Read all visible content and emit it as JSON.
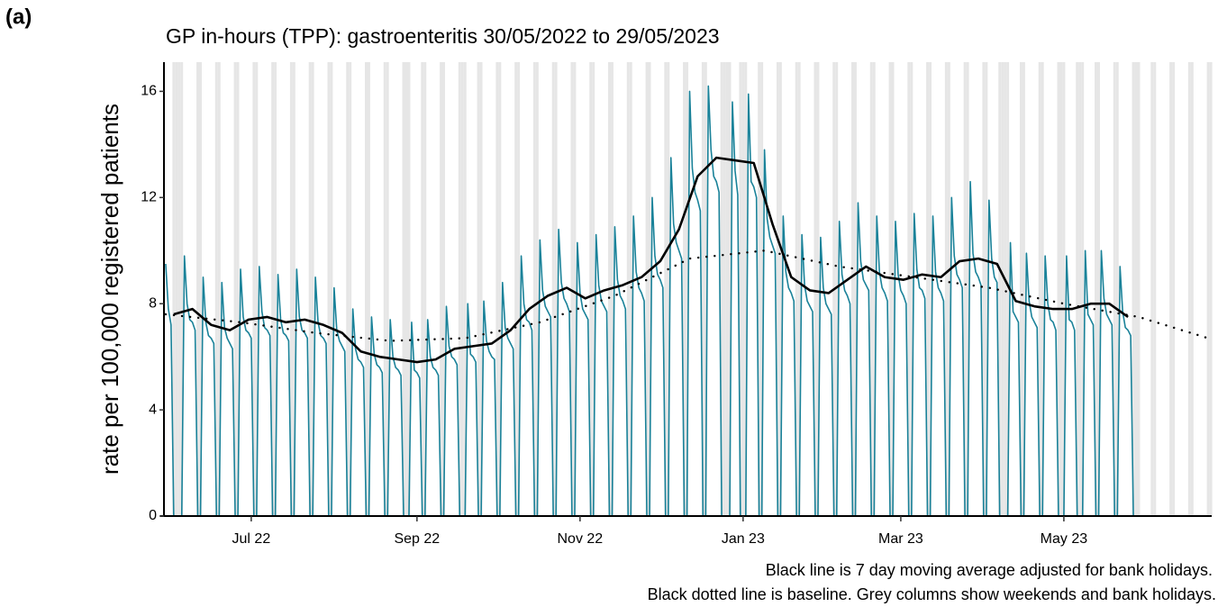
{
  "chart_data": {
    "type": "line",
    "panel_label": "(a)",
    "title": "GP in-hours (TPP): gastroenteritis 30/05/2022 to 29/05/2023",
    "ylabel": "rate per 100,000 registered patients",
    "notes": [
      "Black line is 7 day moving average adjusted for bank holidays.",
      "Black dotted line is baseline. Grey columns show weekends and bank holidays."
    ],
    "xlim": [
      -2,
      391.3
    ],
    "xticks": [
      {
        "value": 32,
        "label": "Jul 22"
      },
      {
        "value": 94,
        "label": "Sep 22"
      },
      {
        "value": 155,
        "label": "Nov 22"
      },
      {
        "value": 216,
        "label": "Jan 23"
      },
      {
        "value": 275,
        "label": "Mar 23"
      },
      {
        "value": 336,
        "label": "May 23"
      }
    ],
    "ylim": [
      0,
      17.1
    ],
    "yticks": [
      0,
      4,
      8,
      12,
      16
    ],
    "shade_color": "#e6e6e6",
    "shaded_days": [
      5,
      6,
      12,
      13,
      19,
      20,
      26,
      27,
      33,
      34,
      40,
      41,
      47,
      48,
      54,
      55,
      61,
      62,
      68,
      69,
      75,
      76,
      82,
      83,
      89,
      90,
      96,
      97,
      103,
      104,
      110,
      111,
      117,
      118,
      124,
      125,
      131,
      132,
      138,
      139,
      145,
      146,
      152,
      153,
      159,
      160,
      166,
      167,
      173,
      174,
      180,
      181,
      187,
      188,
      194,
      195,
      201,
      202,
      208,
      209,
      215,
      216,
      222,
      223,
      229,
      230,
      236,
      237,
      243,
      244,
      250,
      251,
      257,
      258,
      264,
      265,
      271,
      272,
      278,
      279,
      285,
      286,
      292,
      293,
      299,
      300,
      306,
      307,
      313,
      314,
      320,
      321,
      327,
      328,
      334,
      335,
      341,
      342,
      348,
      349,
      355,
      356,
      362,
      363,
      369,
      370,
      376,
      377,
      383,
      384,
      390,
      391,
      3,
      4,
      91,
      112,
      210,
      211,
      217,
      312,
      315,
      336,
      343,
      364
    ],
    "series": [
      {
        "color": "#1a8299",
        "width": 1.6,
        "style": "solid",
        "x": [
          0,
          1,
          2,
          3,
          4,
          5,
          6,
          7,
          8,
          9,
          10,
          11,
          12,
          13,
          14,
          15,
          16,
          17,
          18,
          19,
          20,
          21,
          22,
          23,
          24,
          25,
          26,
          27,
          28,
          29,
          30,
          31,
          32,
          33,
          34,
          35,
          36,
          37,
          38,
          39,
          40,
          41,
          42,
          43,
          44,
          45,
          46,
          47,
          48,
          49,
          50,
          51,
          52,
          53,
          54,
          55,
          56,
          57,
          58,
          59,
          60,
          61,
          62,
          63,
          64,
          65,
          66,
          67,
          68,
          69,
          70,
          71,
          72,
          73,
          74,
          75,
          76,
          77,
          78,
          79,
          80,
          81,
          82,
          83,
          84,
          85,
          86,
          87,
          88,
          89,
          90,
          91,
          92,
          93,
          94,
          95,
          96,
          97,
          98,
          99,
          100,
          101,
          102,
          103,
          104,
          105,
          106,
          107,
          108,
          109,
          110,
          111,
          112,
          113,
          114,
          115,
          116,
          117,
          118,
          119,
          120,
          121,
          122,
          123,
          124,
          125,
          126,
          127,
          128,
          129,
          130,
          131,
          132,
          133,
          134,
          135,
          136,
          137,
          138,
          139,
          140,
          141,
          142,
          143,
          144,
          145,
          146,
          147,
          148,
          149,
          150,
          151,
          152,
          153,
          154,
          155,
          156,
          157,
          158,
          159,
          160,
          161,
          162,
          163,
          164,
          165,
          166,
          167,
          168,
          169,
          170,
          171,
          172,
          173,
          174,
          175,
          176,
          177,
          178,
          179,
          180,
          181,
          182,
          183,
          184,
          185,
          186,
          187,
          188,
          189,
          190,
          191,
          192,
          193,
          194,
          195,
          196,
          197,
          198,
          199,
          200,
          201,
          202,
          203,
          204,
          205,
          206,
          207,
          208,
          209,
          210,
          211,
          212,
          213,
          214,
          215,
          216,
          217,
          218,
          219,
          220,
          221,
          222,
          223,
          224,
          225,
          226,
          227,
          228,
          229,
          230,
          231,
          232,
          233,
          234,
          235,
          236,
          237,
          238,
          239,
          240,
          241,
          242,
          243,
          244,
          245,
          246,
          247,
          248,
          249,
          250,
          251,
          252,
          253,
          254,
          255,
          256,
          257,
          258,
          259,
          260,
          261,
          262,
          263,
          264,
          265,
          266,
          267,
          268,
          269,
          270,
          271,
          272,
          273,
          274,
          275,
          276,
          277,
          278,
          279,
          280,
          281,
          282,
          283,
          284,
          285,
          286,
          287,
          288,
          289,
          290,
          291,
          292,
          293,
          294,
          295,
          296,
          297,
          298,
          299,
          300,
          301,
          302,
          303,
          304,
          305,
          306,
          307,
          308,
          309,
          310,
          311,
          312,
          313,
          314,
          315,
          316,
          317,
          318,
          319,
          320,
          321,
          322,
          323,
          324,
          325,
          326,
          327,
          328,
          329,
          330,
          331,
          332,
          333,
          334,
          335,
          336,
          337,
          338,
          339,
          340,
          341,
          342,
          343,
          344,
          345,
          346,
          347,
          348,
          349,
          350,
          351,
          352,
          353,
          354,
          355,
          356,
          357,
          358,
          359,
          360,
          361,
          362,
          363,
          364
        ],
        "values": [
          9.5,
          7.8,
          7.2,
          0,
          0,
          0,
          0,
          9.8,
          8.0,
          7.4,
          7.3,
          7.0,
          0,
          0,
          9.0,
          7.3,
          6.8,
          6.7,
          6.5,
          0,
          0,
          8.8,
          7.1,
          6.7,
          6.5,
          6.3,
          0,
          0,
          9.3,
          7.5,
          7.0,
          6.9,
          6.7,
          0,
          0,
          9.4,
          7.7,
          7.1,
          7.0,
          6.8,
          0,
          0,
          9.1,
          7.4,
          6.9,
          6.8,
          6.6,
          0,
          0,
          9.3,
          7.5,
          7.0,
          6.9,
          6.7,
          0,
          0,
          9.0,
          7.3,
          6.8,
          6.7,
          6.5,
          0,
          0,
          8.6,
          7.0,
          6.6,
          6.4,
          6.2,
          0,
          0,
          7.8,
          6.3,
          5.9,
          5.8,
          5.6,
          0,
          0,
          7.5,
          6.1,
          5.7,
          5.6,
          5.4,
          0,
          0,
          7.4,
          6.0,
          5.6,
          5.5,
          5.3,
          0,
          0,
          0,
          7.3,
          5.5,
          5.4,
          5.2,
          0,
          0,
          7.4,
          6.0,
          5.6,
          5.5,
          5.3,
          0,
          0,
          7.9,
          6.4,
          6.0,
          5.9,
          5.7,
          0,
          0,
          0,
          8.0,
          6.1,
          6.0,
          5.8,
          0,
          0,
          8.1,
          6.6,
          6.2,
          6.0,
          5.9,
          0,
          0,
          8.8,
          7.1,
          6.7,
          6.5,
          6.3,
          0,
          0,
          9.8,
          8.0,
          7.4,
          7.3,
          7.0,
          0,
          0,
          10.4,
          8.5,
          7.9,
          7.7,
          7.5,
          0,
          0,
          10.8,
          8.8,
          8.2,
          8.0,
          7.7,
          0,
          0,
          10.3,
          8.4,
          7.8,
          7.6,
          7.4,
          0,
          0,
          10.6,
          8.7,
          8.1,
          7.9,
          7.7,
          0,
          0,
          10.9,
          8.9,
          8.3,
          8.1,
          7.8,
          0,
          0,
          11.3,
          9.2,
          8.6,
          8.4,
          8.1,
          0,
          0,
          12.0,
          9.8,
          9.1,
          8.9,
          8.6,
          0,
          0,
          13.5,
          11.0,
          10.3,
          10.0,
          9.7,
          0,
          0,
          16.0,
          13.1,
          12.2,
          11.9,
          11.5,
          0,
          0,
          16.2,
          13.8,
          12.8,
          12.6,
          12.2,
          0,
          0,
          0,
          0,
          15.6,
          13.0,
          12.1,
          0,
          0,
          0,
          15.9,
          12.6,
          12.4,
          12.0,
          0,
          0,
          13.8,
          11.2,
          10.5,
          10.2,
          9.9,
          0,
          0,
          11.3,
          9.2,
          8.6,
          8.4,
          8.1,
          0,
          0,
          10.6,
          8.7,
          8.1,
          7.9,
          7.7,
          0,
          0,
          10.5,
          8.6,
          8.0,
          7.8,
          7.6,
          0,
          0,
          11.1,
          9.1,
          8.5,
          8.3,
          8.0,
          0,
          0,
          11.8,
          9.6,
          8.9,
          8.7,
          8.5,
          0,
          0,
          11.3,
          9.2,
          8.6,
          8.4,
          8.1,
          0,
          0,
          11.1,
          9.1,
          8.5,
          8.3,
          8.0,
          0,
          0,
          11.4,
          9.3,
          8.6,
          8.5,
          8.2,
          0,
          0,
          11.3,
          9.2,
          8.6,
          8.4,
          8.1,
          0,
          0,
          12.0,
          9.8,
          9.1,
          8.9,
          8.6,
          0,
          0,
          12.6,
          9.9,
          9.2,
          9.0,
          8.7,
          0,
          0,
          11.9,
          9.7,
          9.0,
          8.8,
          0,
          0,
          0,
          0,
          10.3,
          7.7,
          7.5,
          7.3,
          0,
          0,
          9.9,
          8.1,
          7.5,
          7.3,
          7.1,
          0,
          0,
          9.8,
          8.0,
          7.4,
          7.3,
          7.0,
          0,
          0,
          0,
          9.8,
          7.4,
          7.3,
          7.0,
          0,
          0,
          0,
          10.0,
          7.6,
          7.4,
          7.2,
          0,
          0,
          10.0,
          8.2,
          7.6,
          7.4,
          7.2,
          0,
          0,
          9.4,
          7.7,
          7.1,
          7.0,
          6.8,
          0,
          0,
          0
        ]
      },
      {
        "color": "#000000",
        "width": 2.6,
        "style": "solid",
        "x": [
          3,
          10,
          17,
          24,
          31,
          38,
          45,
          52,
          59,
          66,
          73,
          80,
          87,
          94,
          101,
          108,
          115,
          122,
          129,
          136,
          143,
          150,
          157,
          164,
          171,
          178,
          185,
          192,
          199,
          206,
          213,
          220,
          227,
          234,
          241,
          248,
          255,
          262,
          269,
          276,
          283,
          290,
          297,
          304,
          311,
          318,
          325,
          332,
          339,
          346,
          353,
          360
        ],
        "values": [
          7.6,
          7.8,
          7.2,
          7.0,
          7.4,
          7.5,
          7.3,
          7.4,
          7.2,
          6.9,
          6.2,
          6.0,
          5.9,
          5.8,
          5.9,
          6.3,
          6.4,
          6.5,
          7.0,
          7.8,
          8.3,
          8.6,
          8.2,
          8.5,
          8.7,
          9.0,
          9.6,
          10.8,
          12.8,
          13.5,
          13.4,
          13.3,
          11.0,
          9.0,
          8.5,
          8.4,
          8.9,
          9.4,
          9.0,
          8.9,
          9.1,
          9.0,
          9.6,
          9.7,
          9.5,
          8.1,
          7.9,
          7.8,
          7.8,
          8.0,
          8.0,
          7.5
        ]
      },
      {
        "color": "#000000",
        "width": 2.4,
        "style": "dotted",
        "x": [
          0,
          28,
          56,
          84,
          112,
          140,
          168,
          196,
          224,
          252,
          280,
          308,
          336,
          364,
          390
        ],
        "values": [
          7.6,
          7.3,
          6.9,
          6.6,
          6.7,
          7.3,
          8.3,
          9.7,
          10.0,
          9.4,
          9.0,
          8.6,
          8.0,
          7.5,
          6.7
        ]
      }
    ]
  }
}
